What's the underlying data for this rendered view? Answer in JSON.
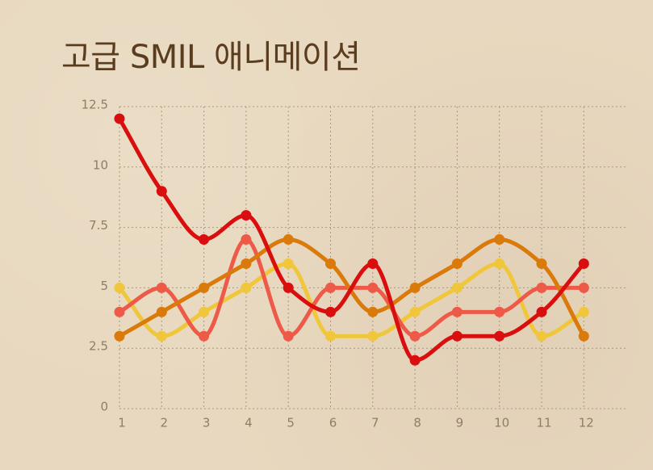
{
  "chart_data": {
    "type": "line",
    "title": "고급 SMIL 애니메이션",
    "x": [
      1,
      2,
      3,
      4,
      5,
      6,
      7,
      8,
      9,
      10,
      11,
      12
    ],
    "x_tick_labels": [
      "1",
      "2",
      "3",
      "4",
      "5",
      "6",
      "7",
      "8",
      "9",
      "10",
      "11",
      "12"
    ],
    "y_tick_labels": [
      "0",
      "2.5",
      "5",
      "7.5",
      "10",
      "12.5"
    ],
    "y_ticks": [
      0,
      2.5,
      5,
      7.5,
      10,
      12.5
    ],
    "ylim": [
      0,
      12.5
    ],
    "grid": true,
    "smooth": true,
    "series": [
      {
        "color": "#f0c63a",
        "values": [
          5,
          3,
          4,
          5,
          6,
          3,
          3,
          4,
          5,
          6,
          3,
          4
        ]
      },
      {
        "color": "#ee5a48",
        "values": [
          4,
          5,
          3,
          7,
          3,
          5,
          5,
          3,
          4,
          4,
          5,
          5
        ]
      },
      {
        "color": "#d97a0a",
        "values": [
          3,
          4,
          5,
          6,
          7,
          6,
          4,
          5,
          6,
          7,
          6,
          3
        ]
      },
      {
        "color": "#d90f0f",
        "values": [
          12,
          9,
          7,
          8,
          5,
          4,
          6,
          2,
          3,
          3,
          4,
          6
        ]
      }
    ]
  }
}
